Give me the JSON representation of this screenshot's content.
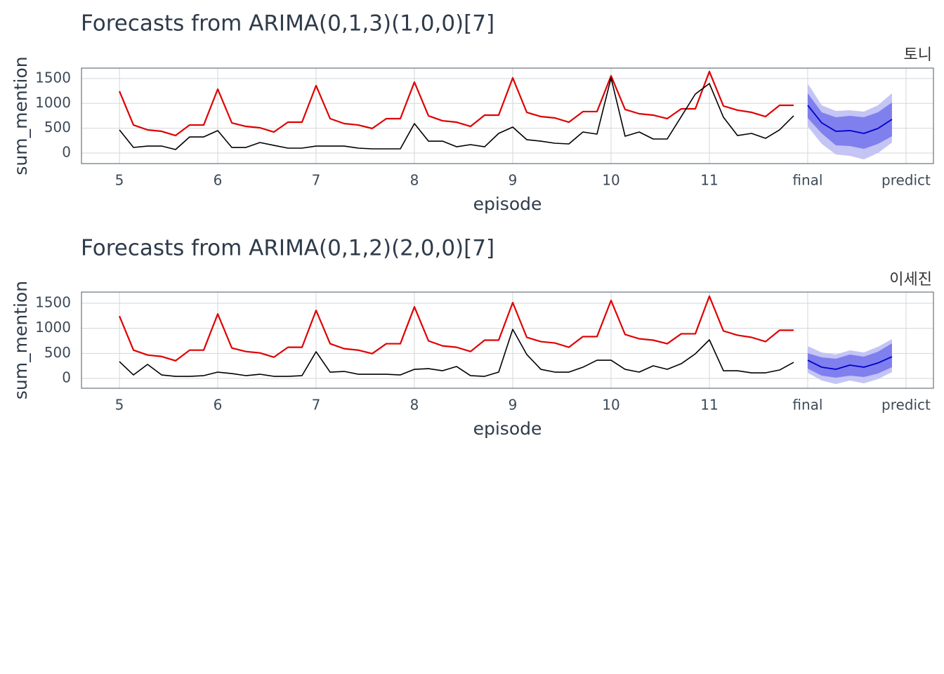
{
  "chart_data": [
    {
      "type": "line",
      "title": "Forecasts from ARIMA(0,1,3)(1,0,0)[7]",
      "subtitle": "토니",
      "x_label": "episode",
      "y_label": "sum_mention",
      "x": [
        5,
        5.143,
        5.286,
        5.429,
        5.571,
        5.714,
        5.857,
        6,
        6.143,
        6.286,
        6.429,
        6.571,
        6.714,
        6.857,
        7,
        7.143,
        7.286,
        7.429,
        7.571,
        7.714,
        7.857,
        8,
        8.143,
        8.286,
        8.429,
        8.571,
        8.714,
        8.857,
        9,
        9.143,
        9.286,
        9.429,
        9.571,
        9.714,
        9.857,
        10,
        10.143,
        10.286,
        10.429,
        10.571,
        10.714,
        10.857,
        11,
        11.143,
        11.286,
        11.429,
        11.571,
        11.714,
        11.857
      ],
      "series": [
        {
          "color": "#e00000",
          "values": [
            1245,
            565,
            467,
            438,
            353,
            565,
            565,
            1287,
            608,
            537,
            509,
            424,
            622,
            622,
            1358,
            693,
            594,
            565,
            495,
            693,
            693,
            1429,
            750,
            650,
            622,
            537,
            764,
            764,
            1514,
            820,
            735,
            707,
            622,
            835,
            835,
            1556,
            877,
            792,
            764,
            693,
            891,
            891,
            1641,
            948,
            863,
            820,
            735,
            962,
            962
          ]
        },
        {
          "color": "#000000",
          "values": [
            467,
            113,
            141,
            141,
            71,
            325,
            325,
            452,
            113,
            113,
            212,
            155,
            99,
            99,
            141,
            141,
            141,
            99,
            85,
            85,
            85,
            594,
            240,
            240,
            127,
            170,
            127,
            396,
            523,
            269,
            240,
            198,
            184,
            424,
            382,
            1514,
            339,
            424,
            283,
            283,
            735,
            1188,
            1400,
            721,
            353,
            396,
            297,
            467,
            750
          ]
        }
      ],
      "forecast": {
        "color": "#0000cc",
        "x": [
          12,
          12.143,
          12.286,
          12.429,
          12.571,
          12.714,
          12.857
        ],
        "values": [
          962,
          608,
          438,
          452,
          396,
          495,
          679
        ]
      },
      "bands": [
        {
          "color": "#c4c4f5",
          "lower": [
            537,
            184,
            -28,
            -57,
            -127,
            0,
            212
          ],
          "upper": [
            1400,
            962,
            849,
            863,
            835,
            962,
            1203
          ]
        },
        {
          "color": "#7f7fee",
          "lower": [
            707,
            396,
            155,
            141,
            85,
            184,
            339
          ],
          "upper": [
            1203,
            820,
            721,
            750,
            721,
            820,
            1019
          ]
        }
      ],
      "xlim": [
        4.614,
        13.279
      ],
      "xticks": [
        5,
        6,
        7,
        8,
        9,
        10,
        11,
        {
          "value": 12,
          "label": "final"
        },
        {
          "value": 13,
          "label": "predict"
        }
      ],
      "ylim": [
        -212,
        1711
      ],
      "yticks": [
        0,
        500,
        1000,
        1500
      ],
      "grid": true
    },
    {
      "type": "line",
      "title": "Forecasts from ARIMA(0,1,2)(2,0,0)[7]",
      "subtitle": "이세진",
      "x_label": "episode",
      "y_label": "sum_mention",
      "x": [
        5,
        5.143,
        5.286,
        5.429,
        5.571,
        5.714,
        5.857,
        6,
        6.143,
        6.286,
        6.429,
        6.571,
        6.714,
        6.857,
        7,
        7.143,
        7.286,
        7.429,
        7.571,
        7.714,
        7.857,
        8,
        8.143,
        8.286,
        8.429,
        8.571,
        8.714,
        8.857,
        9,
        9.143,
        9.286,
        9.429,
        9.571,
        9.714,
        9.857,
        10,
        10.143,
        10.286,
        10.429,
        10.571,
        10.714,
        10.857,
        11,
        11.143,
        11.286,
        11.429,
        11.571,
        11.714,
        11.857
      ],
      "series": [
        {
          "color": "#e00000",
          "values": [
            1245,
            565,
            467,
            438,
            353,
            565,
            565,
            1287,
            608,
            537,
            509,
            424,
            622,
            622,
            1358,
            693,
            594,
            565,
            495,
            693,
            693,
            1429,
            750,
            650,
            622,
            537,
            764,
            764,
            1514,
            820,
            735,
            707,
            622,
            835,
            835,
            1556,
            877,
            792,
            764,
            693,
            891,
            891,
            1641,
            948,
            863,
            820,
            735,
            962,
            962
          ]
        },
        {
          "color": "#000000",
          "values": [
            336,
            70,
            280,
            70,
            42,
            42,
            56,
            126,
            98,
            56,
            84,
            42,
            42,
            56,
            533,
            126,
            140,
            84,
            84,
            84,
            70,
            182,
            196,
            154,
            238,
            56,
            42,
            126,
            981,
            477,
            182,
            126,
            126,
            224,
            364,
            364,
            182,
            126,
            252,
            182,
            294,
            491,
            771,
            154,
            154,
            112,
            112,
            168,
            322
          ]
        }
      ],
      "forecast": {
        "color": "#0000cc",
        "x": [
          12,
          12.143,
          12.286,
          12.429,
          12.571,
          12.714,
          12.857
        ],
        "values": [
          364,
          224,
          182,
          266,
          224,
          308,
          434
        ]
      },
      "bands": [
        {
          "color": "#c4c4f5",
          "lower": [
            112,
            -42,
            -112,
            -42,
            -98,
            -14,
            126
          ],
          "upper": [
            645,
            519,
            476,
            560,
            519,
            631,
            785
          ]
        },
        {
          "color": "#7f7fee",
          "lower": [
            196,
            56,
            14,
            56,
            28,
            98,
            224
          ],
          "upper": [
            504,
            420,
            392,
            476,
            434,
            533,
            701
          ]
        }
      ],
      "xlim": [
        4.614,
        13.279
      ],
      "xticks": [
        5,
        6,
        7,
        8,
        9,
        10,
        11,
        {
          "value": 12,
          "label": "final"
        },
        {
          "value": 13,
          "label": "predict"
        }
      ],
      "ylim": [
        -196,
        1724
      ],
      "yticks": [
        0,
        500,
        1000,
        1500
      ],
      "grid": true
    }
  ]
}
